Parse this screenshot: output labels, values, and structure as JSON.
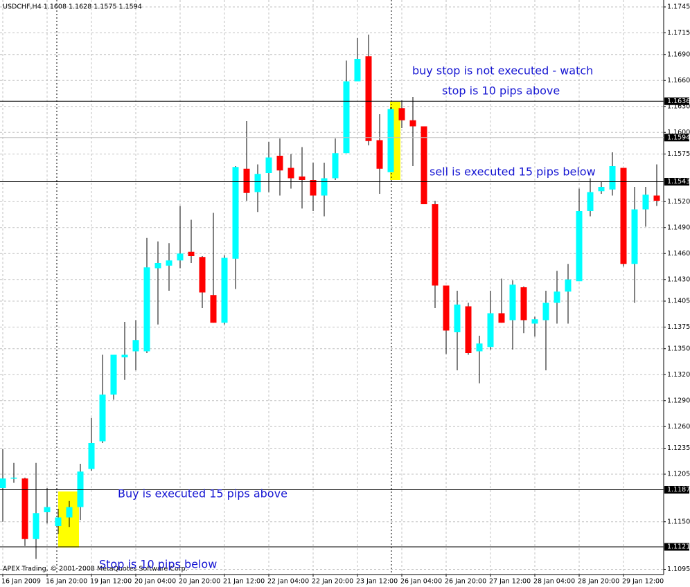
{
  "chart_data": {
    "type": "candlestick",
    "title": "USDCHF,H4  1.1608 1.1628 1.1575 1.1594",
    "footer": "APEX Trading, © 2001-2008 MetaQuotes Software Corp.",
    "up_color": "#00ffff",
    "down_color": "#ff0000",
    "grid": true,
    "categories": [
      "16 Jan 2009",
      null,
      null,
      null,
      "16 Jan 20:00",
      null,
      null,
      null,
      "19 Jan 12:00",
      null,
      null,
      null,
      "20 Jan 04:00",
      null,
      null,
      null,
      "20 Jan 20:00",
      null,
      null,
      null,
      "21 Jan 12:00",
      null,
      null,
      null,
      "22 Jan 04:00",
      null,
      null,
      null,
      "22 Jan 20:00",
      null,
      null,
      null,
      "23 Jan 12:00",
      null,
      null,
      null,
      "26 Jan 04:00",
      null,
      null,
      null,
      "26 Jan 20:00",
      null,
      null,
      null,
      "27 Jan 12:00",
      null,
      null,
      null,
      "28 Jan 04:00",
      null,
      null,
      null,
      "28 Jan 20:00",
      null,
      null,
      null,
      "29 Jan 12:00",
      null,
      null,
      null
    ],
    "open": [
      1.1189,
      1.1201,
      1.12,
      1.113,
      1.1161,
      1.1145,
      1.1155,
      1.1167,
      1.1211,
      1.1243,
      1.1297,
      1.134,
      1.1347,
      1.1347,
      1.1443,
      1.1446,
      1.1452,
      1.1462,
      1.1456,
      1.1412,
      1.138,
      1.1454,
      1.1558,
      1.1531,
      1.1553,
      1.1573,
      1.1559,
      1.1549,
      1.1545,
      1.1527,
      1.1547,
      1.1576,
      1.1659,
      1.1688,
      1.1591,
      1.1554,
      1.1628,
      1.1614,
      1.1607,
      1.1517,
      1.1423,
      1.1369,
      1.1399,
      1.1347,
      1.1352,
      1.1391,
      1.1383,
      1.1421,
      1.1379,
      1.1383,
      1.1403,
      1.1416,
      1.1428,
      1.1509,
      1.1532,
      1.1534,
      1.1559,
      1.1448,
      1.1511,
      1.1527
    ],
    "high": [
      1.1234,
      1.1218,
      1.1201,
      1.1218,
      1.1189,
      1.1165,
      1.1174,
      1.1217,
      1.127,
      1.1343,
      1.1343,
      1.1381,
      1.1383,
      1.1478,
      1.1474,
      1.1472,
      1.1515,
      1.1499,
      1.1457,
      1.1507,
      1.1458,
      1.1561,
      1.1613,
      1.1563,
      1.1589,
      1.1593,
      1.1575,
      1.1583,
      1.1565,
      1.1565,
      1.1593,
      1.1683,
      1.1709,
      1.1713,
      1.1621,
      1.1629,
      1.1637,
      1.1641,
      1.1607,
      1.1521,
      1.1423,
      1.1417,
      1.1403,
      1.1365,
      1.1417,
      1.1431,
      1.1429,
      1.1422,
      1.1387,
      1.1417,
      1.144,
      1.1448,
      1.1535,
      1.1547,
      1.1543,
      1.1577,
      1.1559,
      1.1537,
      1.1537,
      1.1563
    ],
    "low": [
      1.115,
      1.1195,
      1.1122,
      1.1107,
      1.1148,
      1.1136,
      1.1144,
      1.1152,
      1.1209,
      1.1241,
      1.1291,
      1.1314,
      1.1325,
      1.1345,
      1.1378,
      1.1417,
      1.1443,
      1.1449,
      1.1397,
      1.138,
      1.1378,
      1.1419,
      1.1521,
      1.1508,
      1.1531,
      1.1527,
      1.1535,
      1.1512,
      1.1509,
      1.1503,
      1.1545,
      1.1576,
      1.1659,
      1.1585,
      1.1529,
      1.1554,
      1.1605,
      1.1561,
      1.1517,
      1.1397,
      1.1344,
      1.1325,
      1.1343,
      1.131,
      1.1349,
      1.138,
      1.1349,
      1.1368,
      1.1364,
      1.1325,
      1.1379,
      1.1379,
      1.1428,
      1.1503,
      1.1529,
      1.1527,
      1.1445,
      1.1403,
      1.1491,
      1.1515
    ],
    "close": [
      1.12,
      1.1201,
      1.113,
      1.116,
      1.1167,
      1.1155,
      1.1167,
      1.1208,
      1.1241,
      1.1297,
      1.1343,
      1.1343,
      1.136,
      1.1444,
      1.1449,
      1.1452,
      1.146,
      1.1457,
      1.1415,
      1.138,
      1.1455,
      1.156,
      1.153,
      1.1552,
      1.1571,
      1.1556,
      1.1547,
      1.1545,
      1.1527,
      1.1547,
      1.1576,
      1.1659,
      1.1685,
      1.159,
      1.1558,
      1.1627,
      1.1614,
      1.1607,
      1.1517,
      1.1423,
      1.1371,
      1.1401,
      1.1345,
      1.1356,
      1.1391,
      1.138,
      1.1424,
      1.1383,
      1.1384,
      1.1403,
      1.1416,
      1.143,
      1.1509,
      1.1531,
      1.1537,
      1.1561,
      1.1448,
      1.1511,
      1.1528,
      1.1521
    ],
    "ylim": [
      1.1089,
      1.1753
    ],
    "yticks": [
      1.1745,
      1.1715,
      {
        "value": 1.169,
        "label": "1.1690"
      },
      {
        "value": 1.166,
        "label": "1.1660"
      },
      {
        "value": 1.163,
        "label": "1.1630"
      },
      {
        "value": 1.16,
        "label": "1.1600"
      },
      1.1575,
      {
        "value": 1.152,
        "label": "1.1520"
      },
      {
        "value": 1.149,
        "label": "1.1490"
      },
      {
        "value": 1.146,
        "label": "1.1460"
      },
      {
        "value": 1.143,
        "label": "1.1430"
      },
      1.1405,
      1.1375,
      {
        "value": 1.135,
        "label": "1.1350"
      },
      {
        "value": 1.132,
        "label": "1.1320"
      },
      {
        "value": 1.129,
        "label": "1.1290"
      },
      {
        "value": 1.126,
        "label": "1.1260"
      },
      1.1235,
      1.1205,
      {
        "value": 1.115,
        "label": "1.1150"
      },
      1.1095
    ],
    "price_lines": [
      {
        "value": 1.1636,
        "color": "#000000"
      },
      {
        "value": 1.1594,
        "color": "#c0c0c0"
      },
      {
        "value": 1.1543,
        "color": "#000000"
      },
      {
        "value": 1.1187,
        "color": "#000000"
      },
      {
        "value": 1.1121,
        "color": "#000000"
      }
    ],
    "annotations": [
      "buy stop is not executed - watch",
      "stop is 10 pips above",
      "sell is executed 15 pips below",
      "Buy is executed 15 pips above",
      "Stop is 10 pips below"
    ]
  }
}
